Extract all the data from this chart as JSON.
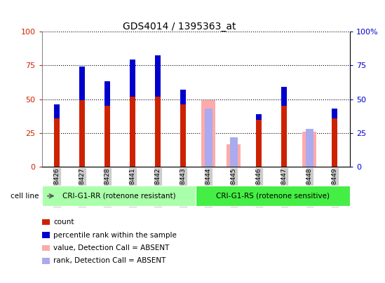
{
  "title": "GDS4014 / 1395363_at",
  "samples": [
    "GSM498426",
    "GSM498427",
    "GSM498428",
    "GSM498441",
    "GSM498442",
    "GSM498443",
    "GSM498444",
    "GSM498445",
    "GSM498446",
    "GSM498447",
    "GSM498448",
    "GSM498449"
  ],
  "group1_label": "CRI-G1-RR (rotenone resistant)",
  "group2_label": "CRI-G1-RS (rotenone sensitive)",
  "cell_line_label": "cell line",
  "red_values": [
    46,
    74,
    63,
    79,
    82,
    57,
    null,
    null,
    39,
    59,
    null,
    43
  ],
  "blue_values": [
    36,
    49,
    45,
    52,
    52,
    46,
    null,
    null,
    35,
    45,
    null,
    36
  ],
  "pink_values": [
    null,
    null,
    null,
    null,
    null,
    null,
    49,
    17,
    null,
    null,
    26,
    null
  ],
  "lightblue_values": [
    null,
    null,
    null,
    null,
    null,
    null,
    43,
    22,
    null,
    null,
    28,
    null
  ],
  "red_color": "#cc2200",
  "blue_color": "#0000cc",
  "pink_color": "#ffaaaa",
  "lightblue_color": "#aaaaee",
  "group1_bg": "#aaffaa",
  "group2_bg": "#44ee44",
  "tick_bg": "#cccccc",
  "ylim": [
    0,
    100
  ],
  "yticks": [
    0,
    25,
    50,
    75,
    100
  ],
  "legend_items": [
    "count",
    "percentile rank within the sample",
    "value, Detection Call = ABSENT",
    "rank, Detection Call = ABSENT"
  ],
  "legend_colors": [
    "#cc2200",
    "#0000cc",
    "#ffaaaa",
    "#aaaaee"
  ]
}
